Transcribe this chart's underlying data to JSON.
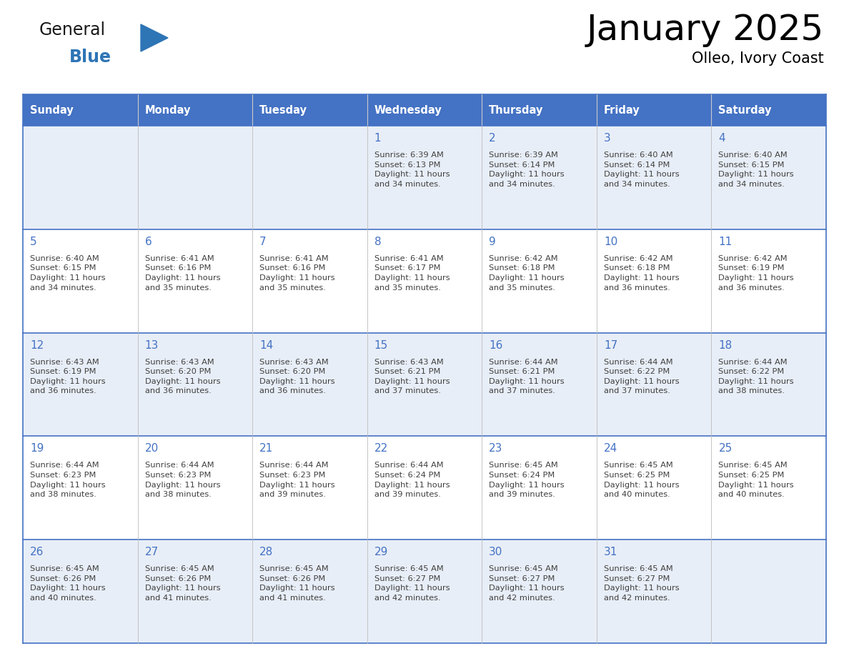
{
  "title": "January 2025",
  "subtitle": "Olleo, Ivory Coast",
  "header_color": "#4472C4",
  "header_text_color": "#FFFFFF",
  "cell_bg_even": "#FFFFFF",
  "cell_bg_odd": "#E8EEF7",
  "border_color": "#4472C4",
  "text_color": "#404040",
  "day_num_color": "#4472C4",
  "days_of_week": [
    "Sunday",
    "Monday",
    "Tuesday",
    "Wednesday",
    "Thursday",
    "Friday",
    "Saturday"
  ],
  "weeks": [
    [
      {
        "day": "",
        "info": ""
      },
      {
        "day": "",
        "info": ""
      },
      {
        "day": "",
        "info": ""
      },
      {
        "day": "1",
        "info": "Sunrise: 6:39 AM\nSunset: 6:13 PM\nDaylight: 11 hours\nand 34 minutes."
      },
      {
        "day": "2",
        "info": "Sunrise: 6:39 AM\nSunset: 6:14 PM\nDaylight: 11 hours\nand 34 minutes."
      },
      {
        "day": "3",
        "info": "Sunrise: 6:40 AM\nSunset: 6:14 PM\nDaylight: 11 hours\nand 34 minutes."
      },
      {
        "day": "4",
        "info": "Sunrise: 6:40 AM\nSunset: 6:15 PM\nDaylight: 11 hours\nand 34 minutes."
      }
    ],
    [
      {
        "day": "5",
        "info": "Sunrise: 6:40 AM\nSunset: 6:15 PM\nDaylight: 11 hours\nand 34 minutes."
      },
      {
        "day": "6",
        "info": "Sunrise: 6:41 AM\nSunset: 6:16 PM\nDaylight: 11 hours\nand 35 minutes."
      },
      {
        "day": "7",
        "info": "Sunrise: 6:41 AM\nSunset: 6:16 PM\nDaylight: 11 hours\nand 35 minutes."
      },
      {
        "day": "8",
        "info": "Sunrise: 6:41 AM\nSunset: 6:17 PM\nDaylight: 11 hours\nand 35 minutes."
      },
      {
        "day": "9",
        "info": "Sunrise: 6:42 AM\nSunset: 6:18 PM\nDaylight: 11 hours\nand 35 minutes."
      },
      {
        "day": "10",
        "info": "Sunrise: 6:42 AM\nSunset: 6:18 PM\nDaylight: 11 hours\nand 36 minutes."
      },
      {
        "day": "11",
        "info": "Sunrise: 6:42 AM\nSunset: 6:19 PM\nDaylight: 11 hours\nand 36 minutes."
      }
    ],
    [
      {
        "day": "12",
        "info": "Sunrise: 6:43 AM\nSunset: 6:19 PM\nDaylight: 11 hours\nand 36 minutes."
      },
      {
        "day": "13",
        "info": "Sunrise: 6:43 AM\nSunset: 6:20 PM\nDaylight: 11 hours\nand 36 minutes."
      },
      {
        "day": "14",
        "info": "Sunrise: 6:43 AM\nSunset: 6:20 PM\nDaylight: 11 hours\nand 36 minutes."
      },
      {
        "day": "15",
        "info": "Sunrise: 6:43 AM\nSunset: 6:21 PM\nDaylight: 11 hours\nand 37 minutes."
      },
      {
        "day": "16",
        "info": "Sunrise: 6:44 AM\nSunset: 6:21 PM\nDaylight: 11 hours\nand 37 minutes."
      },
      {
        "day": "17",
        "info": "Sunrise: 6:44 AM\nSunset: 6:22 PM\nDaylight: 11 hours\nand 37 minutes."
      },
      {
        "day": "18",
        "info": "Sunrise: 6:44 AM\nSunset: 6:22 PM\nDaylight: 11 hours\nand 38 minutes."
      }
    ],
    [
      {
        "day": "19",
        "info": "Sunrise: 6:44 AM\nSunset: 6:23 PM\nDaylight: 11 hours\nand 38 minutes."
      },
      {
        "day": "20",
        "info": "Sunrise: 6:44 AM\nSunset: 6:23 PM\nDaylight: 11 hours\nand 38 minutes."
      },
      {
        "day": "21",
        "info": "Sunrise: 6:44 AM\nSunset: 6:23 PM\nDaylight: 11 hours\nand 39 minutes."
      },
      {
        "day": "22",
        "info": "Sunrise: 6:44 AM\nSunset: 6:24 PM\nDaylight: 11 hours\nand 39 minutes."
      },
      {
        "day": "23",
        "info": "Sunrise: 6:45 AM\nSunset: 6:24 PM\nDaylight: 11 hours\nand 39 minutes."
      },
      {
        "day": "24",
        "info": "Sunrise: 6:45 AM\nSunset: 6:25 PM\nDaylight: 11 hours\nand 40 minutes."
      },
      {
        "day": "25",
        "info": "Sunrise: 6:45 AM\nSunset: 6:25 PM\nDaylight: 11 hours\nand 40 minutes."
      }
    ],
    [
      {
        "day": "26",
        "info": "Sunrise: 6:45 AM\nSunset: 6:26 PM\nDaylight: 11 hours\nand 40 minutes."
      },
      {
        "day": "27",
        "info": "Sunrise: 6:45 AM\nSunset: 6:26 PM\nDaylight: 11 hours\nand 41 minutes."
      },
      {
        "day": "28",
        "info": "Sunrise: 6:45 AM\nSunset: 6:26 PM\nDaylight: 11 hours\nand 41 minutes."
      },
      {
        "day": "29",
        "info": "Sunrise: 6:45 AM\nSunset: 6:27 PM\nDaylight: 11 hours\nand 42 minutes."
      },
      {
        "day": "30",
        "info": "Sunrise: 6:45 AM\nSunset: 6:27 PM\nDaylight: 11 hours\nand 42 minutes."
      },
      {
        "day": "31",
        "info": "Sunrise: 6:45 AM\nSunset: 6:27 PM\nDaylight: 11 hours\nand 42 minutes."
      },
      {
        "day": "",
        "info": ""
      }
    ]
  ],
  "logo_general_color": "#1a1a1a",
  "logo_blue_color": "#2E75B6",
  "logo_triangle_color": "#2E75B6",
  "fig_width": 11.88,
  "fig_height": 9.18,
  "dpi": 100
}
